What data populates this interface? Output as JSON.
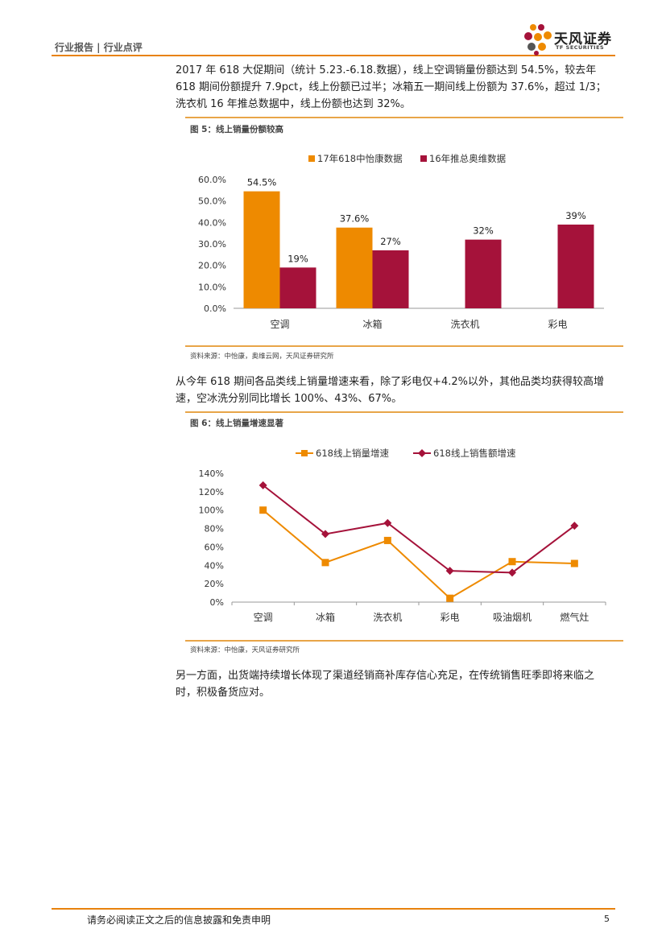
{
  "header": {
    "left": "行业报告 | 行业点评"
  },
  "logo": {
    "cn": "天风证券",
    "en": "TF SECURITIES"
  },
  "paragraphs": [
    "2017 年 618 大促期间（统计 5.23.-6.18.数据），线上空调销量份额达到 54.5%，较去年 618 期间份额提升 7.9pct，线上份额已过半；冰箱五一期间线上份额为 37.6%，超过 1/3；洗衣机 16 年推总数据中，线上份额也达到 32%。",
    "从今年 618 期间各品类线上销量增速来看，除了彩电仅+4.2%以外，其他品类均获得较高增速，空冰洗分别同比增长 100%、43%、67%。",
    "另一方面，出货端持续增长体现了渠道经销商补库存信心充足，在传统销售旺季即将来临之时，积极备货应对。"
  ],
  "figures": [
    {
      "title": "图 5：线上销量份额较高",
      "source": "资料来源：中怡康，奥维云网，天风证券研究所"
    },
    {
      "title": "图 6：线上销量增速显著",
      "source": "资料来源：中怡康，天风证券研究所"
    }
  ],
  "footer": {
    "text": "请务必阅读正文之后的信息披露和免责申明",
    "page": "5"
  },
  "colors": {
    "orange": "#ee8a00",
    "crimson": "#a5123a",
    "accent": "#e8820c"
  },
  "chart_data": [
    {
      "type": "bar",
      "categories": [
        "空调",
        "冰箱",
        "洗衣机",
        "彩电"
      ],
      "series": [
        {
          "name": "17年618中怡康数据",
          "values": [
            54.5,
            37.6,
            null,
            null
          ],
          "labels": [
            "54.5%",
            "37.6%",
            "",
            ""
          ],
          "color": "#ee8a00"
        },
        {
          "name": "16年推总奥维数据",
          "values": [
            19,
            27,
            32,
            39
          ],
          "labels": [
            "19%",
            "27%",
            "32%",
            "39%"
          ],
          "color": "#a5123a"
        }
      ],
      "yticks": [
        "0.0%",
        "10.0%",
        "20.0%",
        "30.0%",
        "40.0%",
        "50.0%",
        "60.0%"
      ],
      "ylim": [
        0,
        60
      ],
      "legend": "top"
    },
    {
      "type": "line",
      "categories": [
        "空调",
        "冰箱",
        "洗衣机",
        "彩电",
        "吸油烟机",
        "燃气灶"
      ],
      "series": [
        {
          "name": "618线上销量增速",
          "values": [
            100,
            43,
            67,
            4.2,
            44,
            42
          ],
          "color": "#ee8a00",
          "marker": "square"
        },
        {
          "name": "618线上销售额增速",
          "values": [
            127,
            74,
            86,
            34,
            32,
            83
          ],
          "color": "#a5123a",
          "marker": "diamond"
        }
      ],
      "yticks": [
        "0%",
        "20%",
        "40%",
        "60%",
        "80%",
        "100%",
        "120%",
        "140%"
      ],
      "ylim": [
        0,
        140
      ],
      "legend": "top"
    }
  ]
}
